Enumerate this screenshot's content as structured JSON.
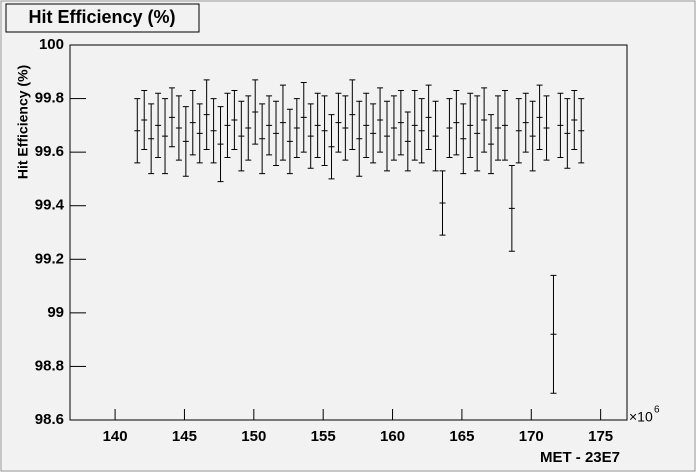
{
  "chart_data": {
    "type": "errorbar",
    "title": "Hit Efficiency (%)",
    "x_label": "MET - 23E7",
    "y_label": "Hit Efficiency (%)",
    "x_exponent": "×10",
    "x_exponent_power": "6",
    "color": "#000000",
    "xlim": [
      136.75,
      176.9
    ],
    "ylim": [
      98.6,
      100
    ],
    "xticks": [
      140,
      145,
      150,
      155,
      160,
      165,
      170,
      175
    ],
    "yticks": [
      98.6,
      98.8,
      99,
      99.2,
      99.4,
      99.6,
      99.8,
      100
    ],
    "x": [
      141.6,
      142.1,
      142.6,
      143.1,
      143.6,
      144.1,
      144.6,
      145.1,
      145.6,
      146.1,
      146.6,
      147.1,
      147.6,
      148.1,
      148.6,
      149.1,
      149.6,
      150.1,
      150.6,
      151.1,
      151.6,
      152.1,
      152.6,
      153.1,
      153.6,
      154.1,
      154.6,
      155.1,
      155.6,
      156.1,
      156.6,
      157.1,
      157.6,
      158.1,
      158.6,
      159.1,
      159.6,
      160.1,
      160.6,
      161.1,
      161.6,
      162.1,
      162.6,
      163.1,
      163.6,
      164.1,
      164.6,
      165.1,
      165.6,
      166.1,
      166.6,
      167.1,
      167.6,
      168.1,
      168.6,
      169.1,
      169.6,
      170.1,
      170.6,
      171.1,
      171.6,
      172.1,
      172.6,
      173.1,
      173.6
    ],
    "values": [
      99.68,
      99.72,
      99.65,
      99.7,
      99.66,
      99.73,
      99.69,
      99.64,
      99.71,
      99.67,
      99.74,
      99.68,
      99.63,
      99.7,
      99.72,
      99.66,
      99.69,
      99.75,
      99.65,
      99.7,
      99.67,
      99.71,
      99.64,
      99.69,
      99.73,
      99.66,
      99.7,
      99.68,
      99.62,
      99.71,
      99.69,
      99.74,
      99.65,
      99.7,
      99.67,
      99.72,
      99.66,
      99.69,
      99.71,
      99.64,
      99.7,
      99.68,
      99.73,
      99.66,
      99.41,
      99.69,
      99.71,
      99.65,
      99.7,
      99.67,
      99.72,
      99.63,
      99.69,
      99.7,
      99.39,
      99.68,
      99.71,
      99.66,
      99.73,
      99.69,
      98.92,
      99.7,
      99.67,
      99.72,
      99.68
    ],
    "errors": [
      0.12,
      0.11,
      0.13,
      0.12,
      0.14,
      0.11,
      0.12,
      0.13,
      0.12,
      0.11,
      0.13,
      0.12,
      0.14,
      0.12,
      0.11,
      0.13,
      0.12,
      0.12,
      0.13,
      0.11,
      0.12,
      0.14,
      0.12,
      0.11,
      0.13,
      0.12,
      0.12,
      0.13,
      0.12,
      0.11,
      0.12,
      0.13,
      0.14,
      0.12,
      0.11,
      0.12,
      0.13,
      0.12,
      0.12,
      0.11,
      0.13,
      0.12,
      0.12,
      0.13,
      0.12,
      0.11,
      0.12,
      0.13,
      0.12,
      0.14,
      0.12,
      0.11,
      0.12,
      0.13,
      0.16,
      0.12,
      0.11,
      0.13,
      0.12,
      0.12,
      0.22,
      0.12,
      0.13,
      0.11,
      0.12
    ]
  }
}
